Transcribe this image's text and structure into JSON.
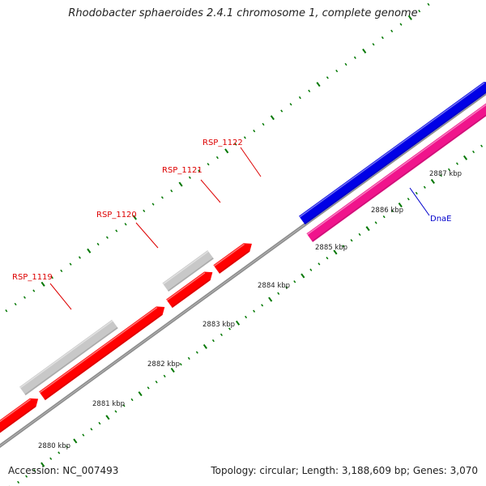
{
  "title": "Rhodobacter sphaeroides 2.4.1 chromosome 1, complete genome",
  "footer": {
    "accession": "Accession: NC_007493",
    "summary": "Topology: circular; Length: 3,188,609 bp; Genes: 3,070"
  },
  "colors": {
    "backbone": "#8c8c8c",
    "feature_red": "#ff0000",
    "feature_gray": "#c8c8c8",
    "feature_blue": "#0000e6",
    "feature_pink": "#f0148c",
    "feature_olive": "#aaaa00",
    "tick_green": "#007700",
    "label_red": "#dd0000",
    "label_blue": "#0000cc",
    "text_dark": "#222222"
  },
  "scale_labels": [
    "2880 kbp",
    "2881 kbp",
    "2882 kbp",
    "2883 kbp",
    "2884 kbp",
    "2885 kbp",
    "2886 kbp",
    "2887 kbp"
  ],
  "gene_labels": [
    {
      "name": "RSP_1119",
      "color": "red"
    },
    {
      "name": "RSP_1120",
      "color": "red"
    },
    {
      "name": "RSP_1121",
      "color": "red"
    },
    {
      "name": "RSP_1122",
      "color": "red"
    },
    {
      "name": "DnaE",
      "color": "blue"
    }
  ]
}
